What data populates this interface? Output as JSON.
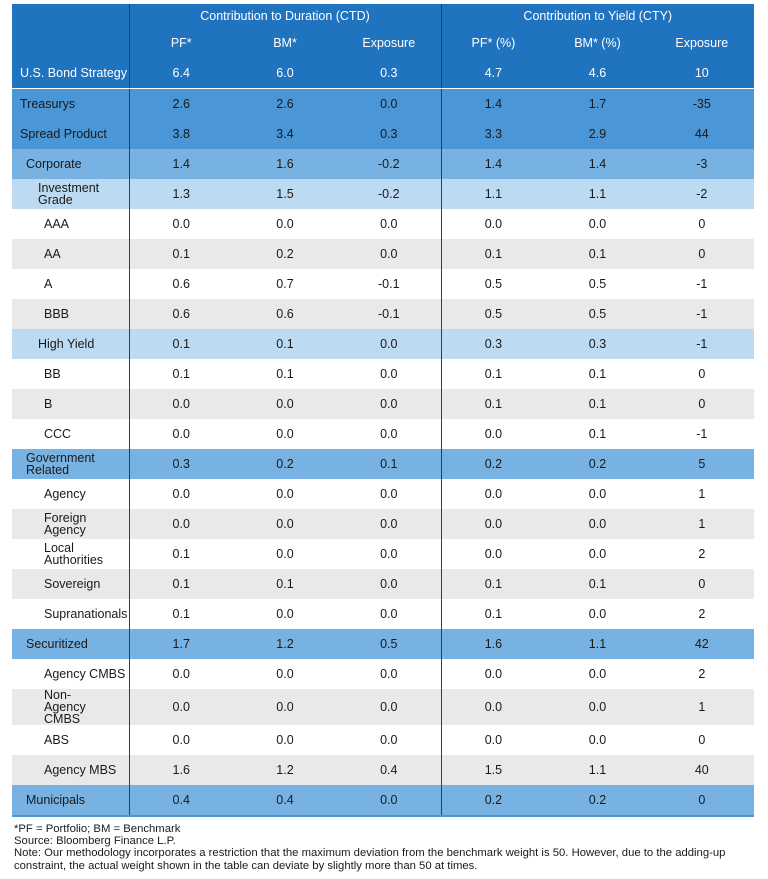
{
  "header": {
    "group_ctd": "Contribution to Duration (CTD)",
    "group_cty": "Contribution to Yield (CTY)",
    "columns": [
      "PF*",
      "BM*",
      "Exposure",
      "PF* (%)",
      "BM* (%)",
      "Exposure"
    ]
  },
  "rows": [
    {
      "label": "U.S. Bond Strategy",
      "level": 0,
      "values": [
        "6.4",
        "6.0",
        "0.3",
        "4.7",
        "4.6",
        "10"
      ]
    },
    {
      "label": "Treasurys",
      "level": 1,
      "values": [
        "2.6",
        "2.6",
        "0.0",
        "1.4",
        "1.7",
        "-35"
      ]
    },
    {
      "label": "Spread Product",
      "level": 1,
      "values": [
        "3.8",
        "3.4",
        "0.3",
        "3.3",
        "2.9",
        "44"
      ]
    },
    {
      "label": "Corporate",
      "level": 2,
      "values": [
        "1.4",
        "1.6",
        "-0.2",
        "1.4",
        "1.4",
        "-3"
      ]
    },
    {
      "label": "Investment Grade",
      "level": 3,
      "values": [
        "1.3",
        "1.5",
        "-0.2",
        "1.1",
        "1.1",
        "-2"
      ]
    },
    {
      "label": "AAA",
      "level": 4,
      "values": [
        "0.0",
        "0.0",
        "0.0",
        "0.0",
        "0.0",
        "0"
      ]
    },
    {
      "label": "AA",
      "level": 4,
      "values": [
        "0.1",
        "0.2",
        "0.0",
        "0.1",
        "0.1",
        "0"
      ]
    },
    {
      "label": "A",
      "level": 4,
      "values": [
        "0.6",
        "0.7",
        "-0.1",
        "0.5",
        "0.5",
        "-1"
      ]
    },
    {
      "label": "BBB",
      "level": 4,
      "values": [
        "0.6",
        "0.6",
        "-0.1",
        "0.5",
        "0.5",
        "-1"
      ]
    },
    {
      "label": "High Yield",
      "level": 3,
      "values": [
        "0.1",
        "0.1",
        "0.0",
        "0.3",
        "0.3",
        "-1"
      ]
    },
    {
      "label": "BB",
      "level": 4,
      "values": [
        "0.1",
        "0.1",
        "0.0",
        "0.1",
        "0.1",
        "0"
      ]
    },
    {
      "label": "B",
      "level": 4,
      "values": [
        "0.0",
        "0.0",
        "0.0",
        "0.1",
        "0.1",
        "0"
      ]
    },
    {
      "label": "CCC",
      "level": 4,
      "values": [
        "0.0",
        "0.0",
        "0.0",
        "0.0",
        "0.1",
        "-1"
      ]
    },
    {
      "label": "Government Related",
      "level": 2,
      "values": [
        "0.3",
        "0.2",
        "0.1",
        "0.2",
        "0.2",
        "5"
      ]
    },
    {
      "label": "Agency",
      "level": 4,
      "values": [
        "0.0",
        "0.0",
        "0.0",
        "0.0",
        "0.0",
        "1"
      ]
    },
    {
      "label": "Foreign Agency",
      "level": 4,
      "values": [
        "0.0",
        "0.0",
        "0.0",
        "0.0",
        "0.0",
        "1"
      ]
    },
    {
      "label": "Local Authorities",
      "level": 4,
      "values": [
        "0.1",
        "0.0",
        "0.0",
        "0.0",
        "0.0",
        "2"
      ]
    },
    {
      "label": "Sovereign",
      "level": 4,
      "values": [
        "0.1",
        "0.1",
        "0.0",
        "0.1",
        "0.1",
        "0"
      ]
    },
    {
      "label": "Supranationals",
      "level": 4,
      "values": [
        "0.1",
        "0.0",
        "0.0",
        "0.1",
        "0.0",
        "2"
      ]
    },
    {
      "label": "Securitized",
      "level": 2,
      "values": [
        "1.7",
        "1.2",
        "0.5",
        "1.6",
        "1.1",
        "42"
      ]
    },
    {
      "label": "Agency CMBS",
      "level": 4,
      "values": [
        "0.0",
        "0.0",
        "0.0",
        "0.0",
        "0.0",
        "2"
      ]
    },
    {
      "label": "Non-Agency CMBS",
      "level": 4,
      "values": [
        "0.0",
        "0.0",
        "0.0",
        "0.0",
        "0.0",
        "1"
      ]
    },
    {
      "label": "ABS",
      "level": 4,
      "values": [
        "0.0",
        "0.0",
        "0.0",
        "0.0",
        "0.0",
        "0"
      ]
    },
    {
      "label": "Agency MBS",
      "level": 4,
      "values": [
        "1.6",
        "1.2",
        "0.4",
        "1.5",
        "1.1",
        "40"
      ]
    },
    {
      "label": "Municipals",
      "level": 2,
      "values": [
        "0.4",
        "0.4",
        "0.0",
        "0.2",
        "0.2",
        "0"
      ]
    }
  ],
  "footnotes": {
    "definitions": "*PF = Portfolio; BM = Benchmark",
    "source": "Source: Bloomberg Finance L.P.",
    "note": "Note: Our methodology incorporates a restriction that the maximum deviation from the benchmark weight is 50. However, due to the adding-up constraint, the actual weight shown in the table can deviate by slightly more than 50 at times."
  },
  "colors": {
    "header_blue": "#1f73bf",
    "level1_blue": "#4a96d6",
    "level2_blue": "#77b2e2",
    "level3_blue": "#bcdaf2",
    "leaf_grey": "#e9e9e9"
  }
}
